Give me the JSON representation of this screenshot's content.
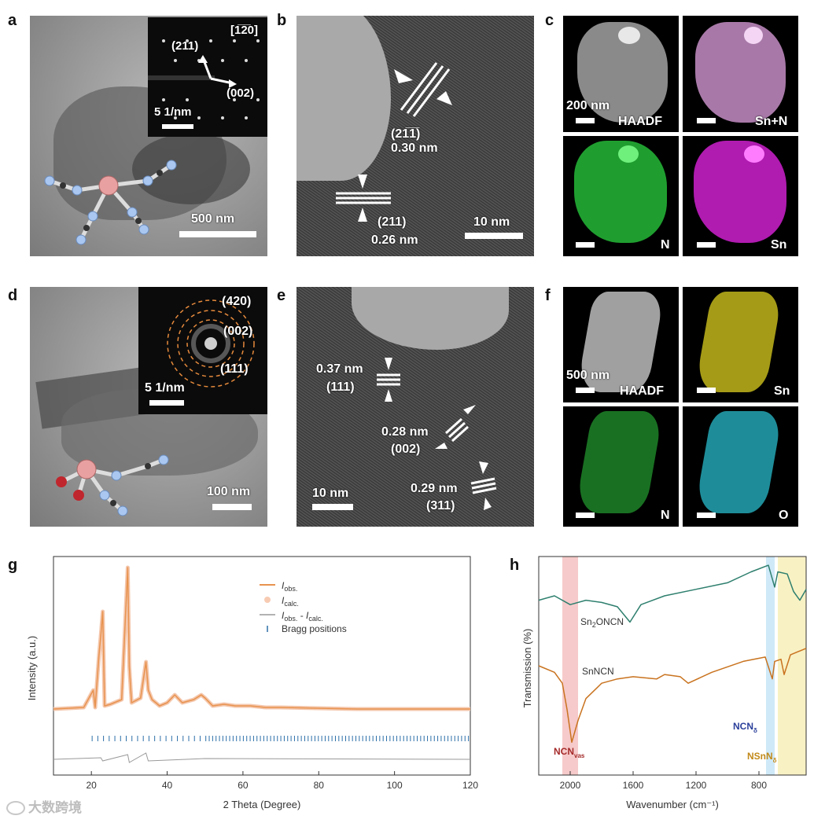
{
  "panels": {
    "a": {
      "label": "a",
      "zone_axis": "[1̅2̅0]",
      "spots": [
        "(211)",
        "(002)"
      ],
      "inset_scale": "5 1/nm",
      "scale": "500 nm"
    },
    "b": {
      "label": "b",
      "planes": [
        {
          "hkl": "(21̅1̅)",
          "d": "0.30 nm"
        },
        {
          "hkl": "(211)",
          "d": "0.26 nm"
        }
      ],
      "scale": "10 nm"
    },
    "c": {
      "label": "c",
      "scale": "200 nm",
      "maps": [
        "HAADF",
        "Sn+N",
        "N",
        "Sn"
      ]
    },
    "d": {
      "label": "d",
      "rings": [
        "(420)",
        "(002)",
        "(111)"
      ],
      "inset_scale": "5 1/nm",
      "scale": "100 nm"
    },
    "e": {
      "label": "e",
      "planes": [
        {
          "d": "0.37 nm",
          "hkl": "(111)"
        },
        {
          "d": "0.28 nm",
          "hkl": "(002)"
        },
        {
          "d": "0.29 nm",
          "hkl": "(311)"
        }
      ],
      "scale": "10 nm"
    },
    "f": {
      "label": "f",
      "scale": "500 nm",
      "maps": [
        "HAADF",
        "Sn",
        "N",
        "O"
      ]
    },
    "g": {
      "label": "g"
    },
    "h": {
      "label": "h"
    }
  },
  "watermark": "大数跨境",
  "chart_data": [
    {
      "type": "line",
      "panel": "g",
      "xlabel": "2 Theta (Degree)",
      "ylabel": "Intensity (a.u.)",
      "xlim": [
        10,
        120
      ],
      "xticks": [
        "20",
        "40",
        "60",
        "80",
        "100",
        "120"
      ],
      "legend": [
        "I_obs.",
        "I_calc.",
        "I_obs. - I_calc.",
        "Bragg positions"
      ],
      "legend_display": {
        "obs": "I",
        "obs_sub": "obs.",
        "calc": "I",
        "calc_sub": "calc.",
        "diff_a": "I",
        "diff_a_sub": "obs.",
        "diff_mid": " - ",
        "diff_b": "I",
        "diff_b_sub": "calc.",
        "bragg": "Bragg positions"
      },
      "series": [
        {
          "name": "I_obs.",
          "x": [
            10,
            18,
            20.5,
            21,
            22,
            22.5,
            23,
            23.5,
            25,
            28,
            29.6,
            30,
            30.6,
            33,
            34.4,
            35,
            36,
            38,
            40,
            42,
            44,
            47,
            49,
            50,
            52,
            55,
            58,
            62,
            66,
            70,
            80,
            90,
            100,
            110,
            120
          ],
          "y": [
            0.08,
            0.09,
            0.2,
            0.09,
            0.42,
            0.55,
            0.7,
            0.1,
            0.11,
            0.14,
            0.98,
            0.35,
            0.12,
            0.15,
            0.38,
            0.2,
            0.14,
            0.1,
            0.12,
            0.17,
            0.12,
            0.14,
            0.17,
            0.15,
            0.1,
            0.11,
            0.1,
            0.1,
            0.09,
            0.09,
            0.085,
            0.08,
            0.08,
            0.08,
            0.08
          ]
        },
        {
          "name": "I_obs. - I_calc.",
          "x": [
            10,
            22.5,
            23,
            29.6,
            30,
            34.4,
            35,
            50,
            120
          ],
          "y": [
            0,
            0.01,
            -0.01,
            0.03,
            -0.02,
            0.04,
            -0.01,
            0.005,
            0
          ]
        }
      ]
    },
    {
      "type": "line",
      "panel": "h",
      "xlabel": "Wavenumber (cm⁻¹)",
      "ylabel": "Transmission (%)",
      "xlim": [
        2200,
        500
      ],
      "xticks": [
        "2000",
        "1600",
        "1200",
        "800"
      ],
      "series": [
        {
          "name": "Sn₂ONCN",
          "sub_a": "Sn",
          "sub_num": "2",
          "sub_b": "ONCN",
          "x": [
            2200,
            2100,
            2000,
            1900,
            1800,
            1700,
            1620,
            1550,
            1400,
            1200,
            1000,
            850,
            740,
            700,
            680,
            620,
            580,
            540,
            500
          ],
          "y": [
            0.8,
            0.82,
            0.78,
            0.8,
            0.79,
            0.77,
            0.7,
            0.78,
            0.82,
            0.85,
            0.88,
            0.93,
            0.96,
            0.86,
            0.93,
            0.92,
            0.84,
            0.8,
            0.85
          ]
        },
        {
          "name": "SnNCN",
          "x": [
            2200,
            2100,
            2050,
            2020,
            1990,
            1950,
            1900,
            1800,
            1700,
            1600,
            1450,
            1400,
            1300,
            1250,
            1100,
            900,
            760,
            715,
            700,
            660,
            640,
            600,
            500
          ],
          "y": [
            0.5,
            0.47,
            0.42,
            0.3,
            0.15,
            0.25,
            0.35,
            0.42,
            0.44,
            0.45,
            0.44,
            0.46,
            0.45,
            0.42,
            0.47,
            0.52,
            0.54,
            0.44,
            0.52,
            0.53,
            0.46,
            0.55,
            0.58
          ]
        }
      ],
      "bands": [
        {
          "label": "NCN",
          "sub": "νₐₛ",
          "sub_display": "vas",
          "color": "#f3b8b8",
          "range": [
            2050,
            1950
          ]
        },
        {
          "label": "NCN",
          "sub": "δ",
          "color": "#bfe2f5",
          "range": [
            755,
            700
          ]
        },
        {
          "label": "NSnN",
          "sub": "δ",
          "color": "#f5ecb0",
          "range": [
            680,
            500
          ]
        }
      ]
    }
  ]
}
